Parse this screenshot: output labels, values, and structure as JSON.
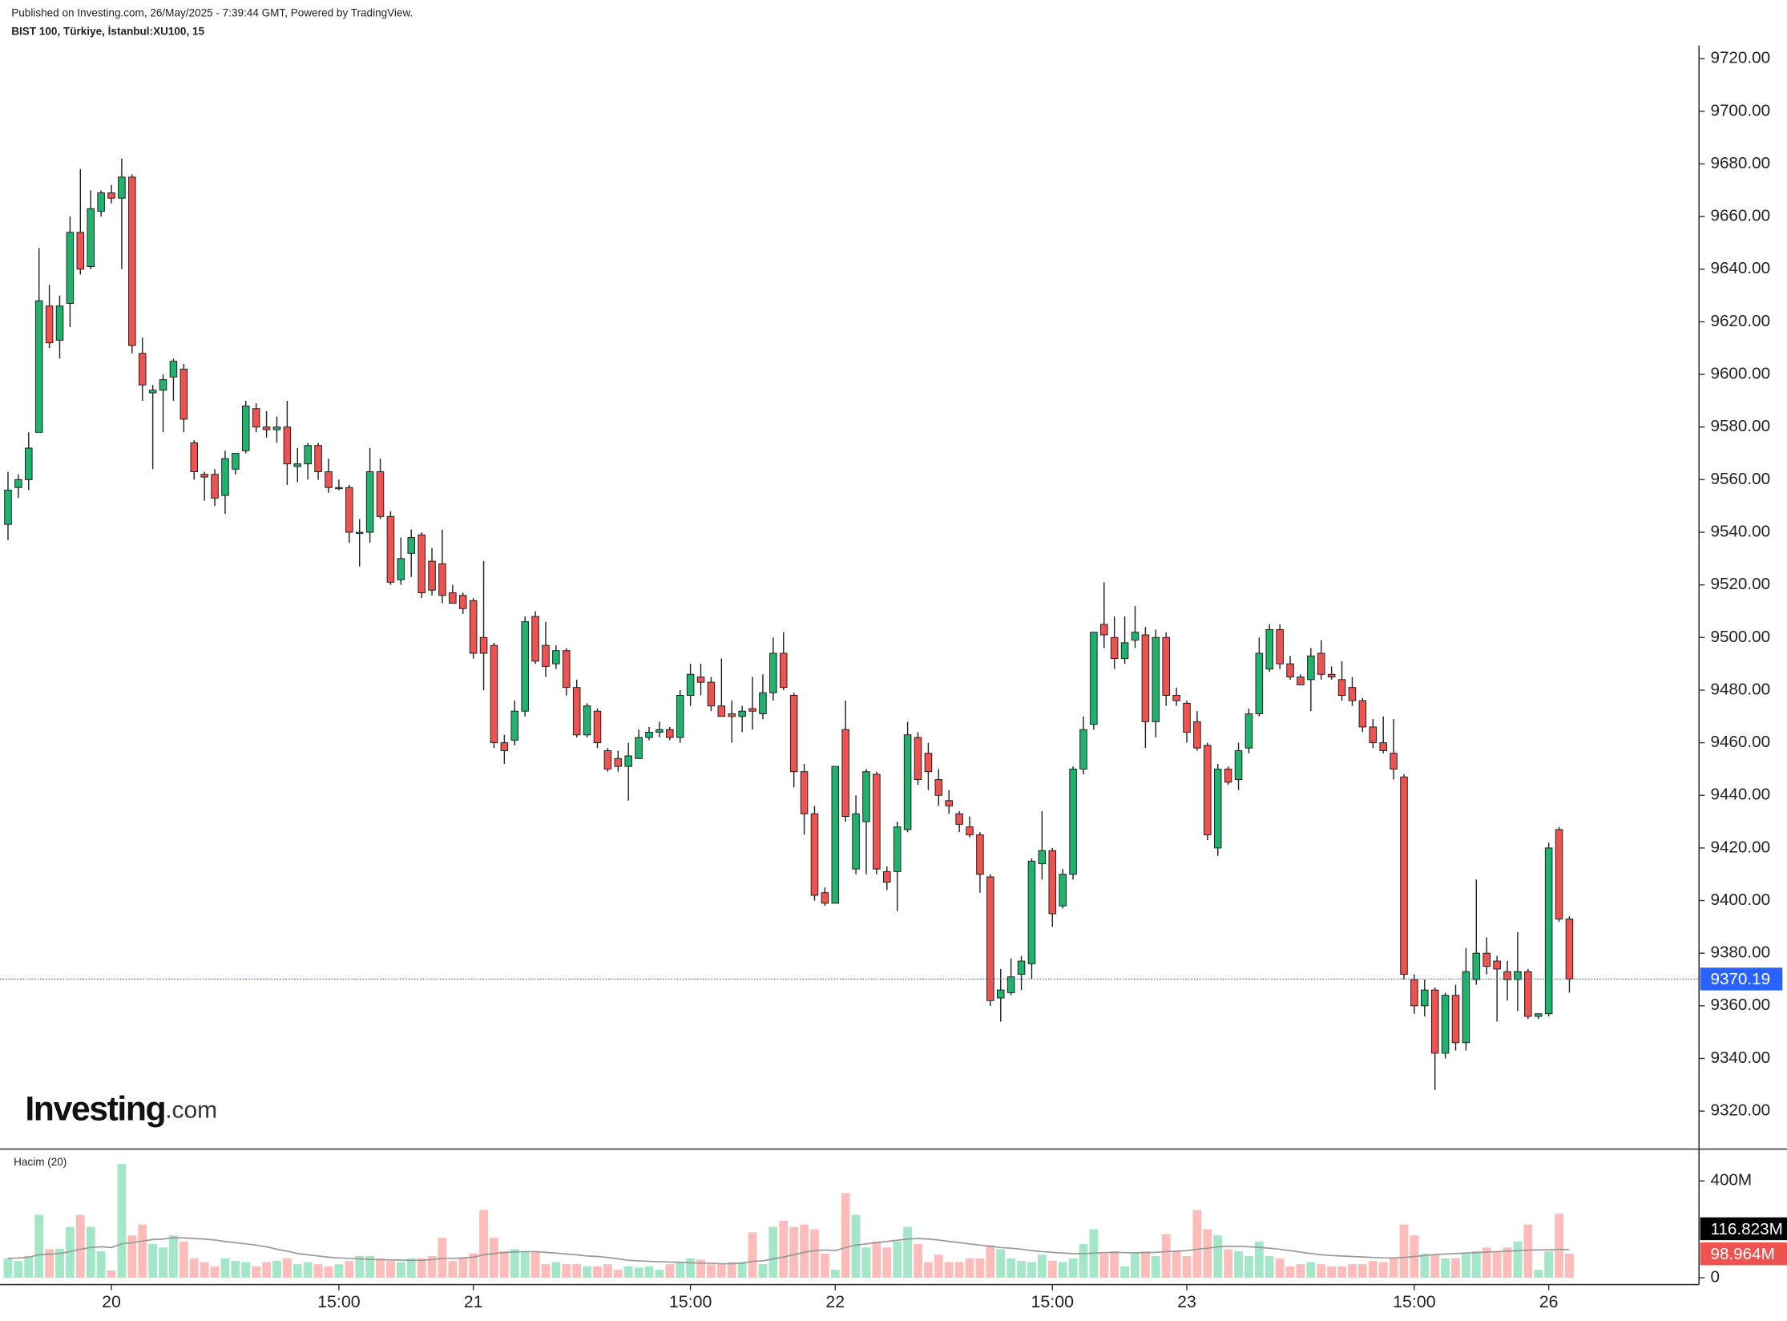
{
  "logo": {
    "brand": "Investing",
    "suffix": ".com"
  },
  "chart_data": {
    "type": "candlestick",
    "title": "Published on Investing.com, 26/May/2025 - 7:39:44 GMT, Powered by TradingView.",
    "subtitle": "BIST 100, Türkiye, İstanbul:XU100, 15",
    "categories": [
      null,
      null,
      null,
      null,
      null,
      null,
      null,
      null,
      null,
      null,
      "20",
      null,
      null,
      null,
      null,
      null,
      null,
      null,
      null,
      null,
      null,
      null,
      null,
      null,
      null,
      null,
      null,
      null,
      null,
      null,
      null,
      null,
      "15:00",
      null,
      null,
      null,
      null,
      null,
      null,
      null,
      null,
      null,
      null,
      null,
      null,
      "21",
      null,
      null,
      null,
      null,
      null,
      null,
      null,
      null,
      null,
      null,
      null,
      null,
      null,
      null,
      null,
      null,
      null,
      null,
      null,
      null,
      "15:00",
      null,
      null,
      null,
      null,
      null,
      null,
      null,
      null,
      null,
      null,
      null,
      null,
      null,
      "22",
      null,
      null,
      null,
      null,
      null,
      null,
      null,
      null,
      null,
      null,
      null,
      null,
      null,
      null,
      null,
      null,
      null,
      null,
      null,
      null,
      "15:00",
      null,
      null,
      null,
      null,
      null,
      null,
      null,
      null,
      null,
      null,
      null,
      null,
      "23",
      null,
      null,
      null,
      null,
      null,
      null,
      null,
      null,
      null,
      null,
      null,
      null,
      null,
      null,
      null,
      null,
      null,
      null,
      null,
      null,
      null,
      "15:00",
      null,
      null,
      null,
      null,
      null,
      null,
      null,
      null,
      null,
      null,
      null,
      null,
      "26",
      null,
      null
    ],
    "open": [
      9543,
      9557,
      9560,
      9578,
      9626,
      9613,
      9627,
      9654,
      9641,
      9662,
      9669,
      9667,
      9675,
      9608,
      9593,
      9594,
      9599,
      9602,
      9574,
      9562,
      9562,
      9554,
      9564,
      9571,
      9587,
      9580,
      9579,
      9580,
      9565,
      9566,
      9573,
      9563,
      9557,
      9557,
      9540,
      9540,
      9563,
      9546,
      9522,
      9532,
      9539,
      9529,
      9528,
      9517,
      9516,
      9514,
      9500,
      9497,
      9460,
      9461,
      9472,
      9508,
      9497,
      9490,
      9495,
      9481,
      9463,
      9472,
      9457,
      9454,
      9451,
      9454,
      9462,
      9464,
      9465,
      9462,
      9478,
      9485,
      9483,
      9474,
      9471,
      9470,
      9473,
      9471,
      9479,
      9494,
      9478,
      9449,
      9433,
      9403,
      9399,
      9465,
      9412,
      9430,
      9448,
      9411,
      9411,
      9427,
      9462,
      9456,
      9446,
      9438,
      9433,
      9428,
      9425,
      9409,
      9363,
      9365,
      9372,
      9376,
      9414,
      9419,
      9398,
      9410,
      9450,
      9467,
      9505,
      9500,
      9492,
      9499,
      9501,
      9468,
      9500,
      9478,
      9475,
      9468,
      9459,
      9420,
      9450,
      9446,
      9458,
      9471,
      9488,
      9503,
      9490,
      9485,
      9484,
      9494,
      9486,
      9484,
      9481,
      9476,
      9466,
      9460,
      9456,
      9447,
      9370,
      9360,
      9366,
      9342,
      9364,
      9346,
      9370,
      9380,
      9377,
      9373,
      9370,
      9373,
      9356,
      9357,
      9427,
      9393
    ],
    "high": [
      9563,
      9562,
      9578,
      9648,
      9634,
      9630,
      9660,
      9678,
      9670,
      9670,
      9672,
      9682,
      9676,
      9614,
      9596,
      9600,
      9606,
      9604,
      9575,
      9563,
      9564,
      9571,
      9570,
      9590,
      9589,
      9586,
      9584,
      9590,
      9572,
      9574,
      9574,
      9568,
      9560,
      9558,
      9545,
      9572,
      9568,
      9548,
      9538,
      9541,
      9540,
      9534,
      9541,
      9520,
      9517,
      9515,
      9529,
      9498,
      9463,
      9476,
      9508,
      9510,
      9506,
      9497,
      9496,
      9484,
      9475,
      9473,
      9458,
      9457,
      9460,
      9465,
      9466,
      9468,
      9466,
      9480,
      9490,
      9490,
      9485,
      9492,
      9476,
      9474,
      9485,
      9486,
      9500,
      9502,
      9479,
      9452,
      9436,
      9405,
      9451,
      9476,
      9440,
      9450,
      9449,
      9413,
      9430,
      9468,
      9464,
      9460,
      9450,
      9442,
      9434,
      9432,
      9426,
      9410,
      9374,
      9378,
      9379,
      9416,
      9434,
      9420,
      9412,
      9451,
      9470,
      9502,
      9521,
      9508,
      9508,
      9512,
      9504,
      9503,
      9502,
      9481,
      9476,
      9472,
      9460,
      9452,
      9451,
      9460,
      9473,
      9500,
      9505,
      9505,
      9493,
      9486,
      9496,
      9499,
      9489,
      9491,
      9485,
      9477,
      9469,
      9470,
      9469,
      9448,
      9372,
      9370,
      9367,
      9365,
      9368,
      9382,
      9408,
      9386,
      9379,
      9377,
      9388,
      9374,
      9357,
      9422,
      9428,
      9394
    ],
    "low": [
      9537,
      9553,
      9556,
      9578,
      9610,
      9606,
      9618,
      9638,
      9640,
      9660,
      9665,
      9640,
      9608,
      9590,
      9564,
      9578,
      9590,
      9578,
      9560,
      9552,
      9550,
      9547,
      9562,
      9570,
      9578,
      9576,
      9574,
      9558,
      9559,
      9560,
      9560,
      9555,
      9556,
      9536,
      9527,
      9536,
      9545,
      9520,
      9520,
      9523,
      9515,
      9516,
      9513,
      9513,
      9509,
      9492,
      9480,
      9458,
      9452,
      9459,
      9470,
      9490,
      9485,
      9488,
      9478,
      9462,
      9462,
      9458,
      9449,
      9449,
      9438,
      9454,
      9461,
      9462,
      9461,
      9460,
      9474,
      9478,
      9472,
      9470,
      9460,
      9464,
      9465,
      9469,
      9476,
      9480,
      9443,
      9425,
      9400,
      9398,
      9399,
      9430,
      9410,
      9410,
      9410,
      9404,
      9396,
      9426,
      9444,
      9442,
      9436,
      9433,
      9426,
      9424,
      9403,
      9360,
      9354,
      9364,
      9366,
      9370,
      9408,
      9390,
      9397,
      9408,
      9448,
      9465,
      9496,
      9488,
      9490,
      9496,
      9458,
      9462,
      9474,
      9474,
      9460,
      9457,
      9423,
      9417,
      9444,
      9442,
      9456,
      9470,
      9487,
      9488,
      9484,
      9482,
      9472,
      9484,
      9484,
      9476,
      9474,
      9464,
      9458,
      9456,
      9446,
      9370,
      9357,
      9356,
      9328,
      9340,
      9343,
      9343,
      9368,
      9372,
      9354,
      9362,
      9358,
      9355,
      9355,
      9356,
      9392,
      9365
    ],
    "close": [
      9556,
      9560,
      9572,
      9628,
      9612,
      9626,
      9654,
      9640,
      9663,
      9669,
      9667,
      9675,
      9611,
      9596,
      9594,
      9598,
      9605,
      9583,
      9563,
      9561,
      9553,
      9568,
      9570,
      9588,
      9580,
      9579,
      9580,
      9566,
      9566,
      9573,
      9563,
      9557,
      9557,
      9540,
      9540,
      9563,
      9546,
      9521,
      9530,
      9538,
      9517,
      9518,
      9516,
      9513,
      9511,
      9494,
      9494,
      9460,
      9457,
      9472,
      9506,
      9491,
      9489,
      9495,
      9481,
      9463,
      9474,
      9460,
      9450,
      9451,
      9455,
      9462,
      9464,
      9465,
      9462,
      9478,
      9486,
      9483,
      9474,
      9470,
      9470,
      9472,
      9472,
      9479,
      9494,
      9481,
      9449,
      9433,
      9402,
      9399,
      9451,
      9432,
      9433,
      9449,
      9412,
      9407,
      9428,
      9463,
      9446,
      9449,
      9440,
      9436,
      9429,
      9425,
      9410,
      9362,
      9366,
      9371,
      9377,
      9415,
      9419,
      9395,
      9410,
      9450,
      9465,
      9502,
      9501,
      9492,
      9498,
      9502,
      9468,
      9500,
      9478,
      9476,
      9464,
      9458,
      9425,
      9450,
      9445,
      9457,
      9471,
      9494,
      9503,
      9490,
      9485,
      9482,
      9493,
      9486,
      9485,
      9478,
      9476,
      9466,
      9460,
      9457,
      9450,
      9372,
      9360,
      9366,
      9342,
      9364,
      9346,
      9373,
      9380,
      9375,
      9374,
      9370,
      9373,
      9356,
      9357,
      9420,
      9393,
      9370.19
    ],
    "up_color": "#1fb36e",
    "down_color": "#ef5350",
    "last_price_color": "#2962ff",
    "ylim": [
      9306,
      9725
    ],
    "yticks": [
      {
        "value": 9320,
        "label": "9320.00"
      },
      {
        "value": 9340,
        "label": "9340.00"
      },
      {
        "value": 9360,
        "label": "9360.00"
      },
      {
        "value": 9380,
        "label": "9380.00"
      },
      {
        "value": 9400,
        "label": "9400.00"
      },
      {
        "value": 9420,
        "label": "9420.00"
      },
      {
        "value": 9440,
        "label": "9440.00"
      },
      {
        "value": 9460,
        "label": "9460.00"
      },
      {
        "value": 9480,
        "label": "9480.00"
      },
      {
        "value": 9500,
        "label": "9500.00"
      },
      {
        "value": 9520,
        "label": "9520.00"
      },
      {
        "value": 9540,
        "label": "9540.00"
      },
      {
        "value": 9560,
        "label": "9560.00"
      },
      {
        "value": 9580,
        "label": "9580.00"
      },
      {
        "value": 9600,
        "label": "9600.00"
      },
      {
        "value": 9620,
        "label": "9620.00"
      },
      {
        "value": 9640,
        "label": "9640.00"
      },
      {
        "value": 9660,
        "label": "9660.00"
      },
      {
        "value": 9680,
        "label": "9680.00"
      },
      {
        "value": 9700,
        "label": "9700.00"
      },
      {
        "value": 9720,
        "label": "9720.00"
      }
    ],
    "grid": false,
    "volume": {
      "title": "Hacim (20)",
      "values": [
        80,
        70,
        90,
        260,
        118,
        120,
        210,
        260,
        210,
        110,
        30,
        470,
        175,
        220,
        140,
        125,
        175,
        150,
        80,
        65,
        47,
        80,
        70,
        65,
        47,
        65,
        70,
        80,
        56,
        65,
        56,
        47,
        56,
        70,
        90,
        90,
        80,
        70,
        65,
        80,
        80,
        90,
        165,
        70,
        85,
        100,
        280,
        165,
        110,
        118,
        110,
        110,
        56,
        65,
        56,
        56,
        47,
        47,
        56,
        33,
        47,
        42,
        47,
        33,
        56,
        65,
        80,
        75,
        56,
        56,
        65,
        65,
        188,
        56,
        210,
        235,
        210,
        220,
        200,
        100,
        33,
        350,
        260,
        125,
        150,
        125,
        150,
        210,
        140,
        65,
        95,
        65,
        65,
        80,
        80,
        135,
        118,
        80,
        70,
        65,
        95,
        70,
        65,
        80,
        140,
        200,
        100,
        110,
        47,
        100,
        110,
        90,
        180,
        110,
        90,
        280,
        200,
        175,
        118,
        110,
        90,
        150,
        90,
        80,
        47,
        56,
        65,
        56,
        47,
        47,
        56,
        56,
        70,
        65,
        80,
        220,
        175,
        100,
        95,
        80,
        80,
        100,
        110,
        125,
        110,
        125,
        150,
        220,
        33,
        110,
        265,
        98.964
      ],
      "value_labels": [
        null,
        null,
        null,
        null,
        null,
        null,
        null,
        null,
        null,
        null,
        null,
        null,
        null,
        null,
        null,
        null,
        null,
        null,
        null,
        null,
        null,
        null,
        null,
        null,
        null,
        null,
        null,
        null,
        null,
        null,
        null,
        null,
        null,
        null,
        null,
        null,
        null,
        null,
        null,
        null,
        null,
        null,
        null,
        null,
        null,
        null,
        null,
        null,
        null,
        null,
        null,
        null,
        null,
        null,
        null,
        null,
        null,
        null,
        null,
        null,
        null,
        null,
        null,
        null,
        null,
        null,
        null,
        null,
        null,
        null,
        null,
        null,
        null,
        null,
        null,
        null,
        null,
        null,
        null,
        null,
        null,
        null,
        null,
        null,
        null,
        null,
        null,
        null,
        null,
        null,
        null,
        null,
        null,
        null,
        null,
        null,
        null,
        null,
        null,
        null,
        null,
        null,
        null,
        null,
        null,
        null,
        null,
        null,
        null,
        null,
        null,
        null,
        null,
        null,
        null,
        null,
        null,
        null,
        null,
        null,
        null,
        null,
        null,
        null,
        null,
        null,
        null,
        null,
        null,
        null,
        null,
        null,
        null,
        null,
        null,
        null,
        null,
        null,
        null,
        null,
        null,
        null,
        null,
        null,
        null,
        null,
        null,
        null,
        null,
        null,
        null,
        "98.964M"
      ],
      "ma_values": [
        80,
        82,
        85,
        95,
        98,
        100,
        108,
        118,
        125,
        128,
        125,
        140,
        145,
        152,
        158,
        160,
        165,
        165,
        162,
        160,
        156,
        150,
        145,
        140,
        135,
        128,
        118,
        110,
        100,
        95,
        90,
        85,
        82,
        80,
        78,
        76,
        75,
        74,
        73,
        72,
        72,
        75,
        80,
        80,
        82,
        85,
        95,
        100,
        104,
        107,
        108,
        108,
        105,
        102,
        98,
        95,
        90,
        88,
        84,
        78,
        72,
        70,
        68,
        66,
        65,
        64,
        62,
        60,
        60,
        58,
        58,
        60,
        68,
        70,
        78,
        86,
        95,
        105,
        112,
        115,
        112,
        125,
        135,
        140,
        145,
        150,
        155,
        160,
        162,
        160,
        156,
        150,
        145,
        140,
        135,
        130,
        125,
        122,
        118,
        112,
        108,
        105,
        102,
        100,
        100,
        102,
        104,
        105,
        104,
        103,
        104,
        105,
        108,
        110,
        112,
        118,
        122,
        128,
        130,
        130,
        128,
        126,
        122,
        118,
        112,
        106,
        100,
        95,
        92,
        90,
        88,
        86,
        84,
        82,
        82,
        84,
        88,
        92,
        96,
        98,
        100,
        102,
        104,
        106,
        108,
        110,
        112,
        114,
        115,
        116,
        117,
        116.823
      ],
      "ma_value_labels": [
        null,
        null,
        null,
        null,
        null,
        null,
        null,
        null,
        null,
        null,
        null,
        null,
        null,
        null,
        null,
        null,
        null,
        null,
        null,
        null,
        null,
        null,
        null,
        null,
        null,
        null,
        null,
        null,
        null,
        null,
        null,
        null,
        null,
        null,
        null,
        null,
        null,
        null,
        null,
        null,
        null,
        null,
        null,
        null,
        null,
        null,
        null,
        null,
        null,
        null,
        null,
        null,
        null,
        null,
        null,
        null,
        null,
        null,
        null,
        null,
        null,
        null,
        null,
        null,
        null,
        null,
        null,
        null,
        null,
        null,
        null,
        null,
        null,
        null,
        null,
        null,
        null,
        null,
        null,
        null,
        null,
        null,
        null,
        null,
        null,
        null,
        null,
        null,
        null,
        null,
        null,
        null,
        null,
        null,
        null,
        null,
        null,
        null,
        null,
        null,
        null,
        null,
        null,
        null,
        null,
        null,
        null,
        null,
        null,
        null,
        null,
        null,
        null,
        null,
        null,
        null,
        null,
        null,
        null,
        null,
        null,
        null,
        null,
        null,
        null,
        null,
        null,
        null,
        null,
        null,
        null,
        null,
        null,
        null,
        null,
        null,
        null,
        null,
        null,
        null,
        null,
        null,
        null,
        null,
        null,
        null,
        null,
        null,
        null,
        null,
        null,
        "116.823M"
      ],
      "up_color": "#a3e6c8",
      "down_color": "#fbbcba",
      "ma_color": "#999999",
      "ma_tag_color": "#000000",
      "ylim": [
        -28,
        527
      ],
      "yticks": [
        0,
        {
          "value": 400,
          "label": "400M"
        }
      ]
    }
  }
}
